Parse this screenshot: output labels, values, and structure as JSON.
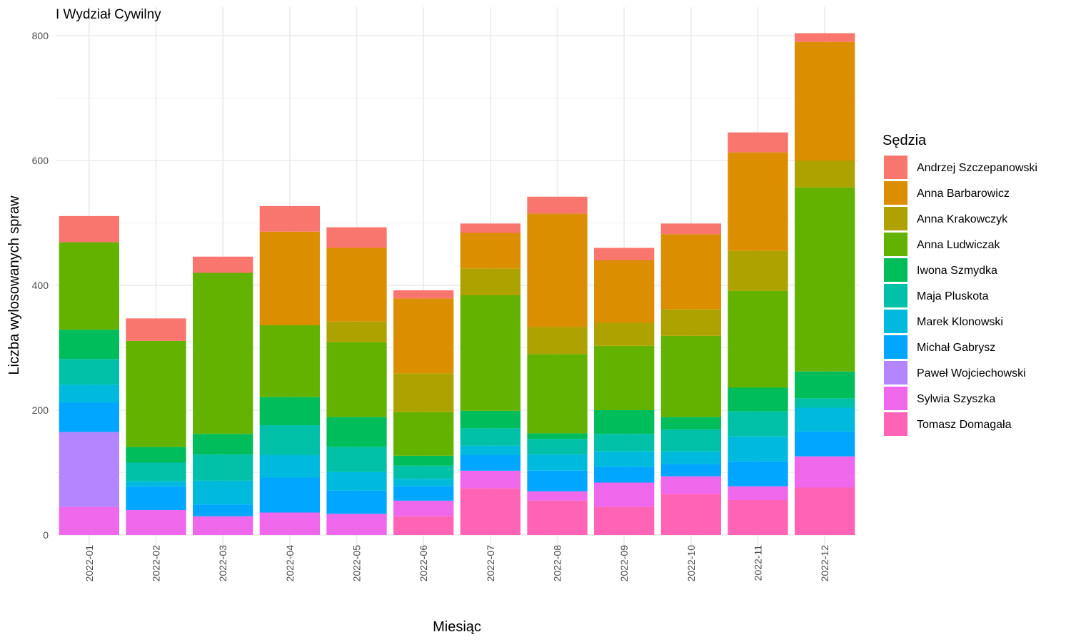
{
  "chart_data": {
    "type": "bar",
    "stacked": true,
    "title": "I Wydział Cywilny",
    "xlabel": "Miesiąc",
    "ylabel": "Liczba wylosowanych spraw",
    "ylim": [
      0,
      830
    ],
    "yticks": [
      0,
      200,
      400,
      600,
      800
    ],
    "grid": true,
    "legend_title": "Sędzia",
    "legend_position": "right",
    "categories": [
      "2022-01",
      "2022-02",
      "2022-03",
      "2022-04",
      "2022-05",
      "2022-06",
      "2022-07",
      "2022-08",
      "2022-09",
      "2022-10",
      "2022-11",
      "2022-12"
    ],
    "series": [
      {
        "name": "Andrzej Szczepanowski",
        "color": "#F8766D",
        "values": [
          42,
          36,
          26,
          41,
          33,
          13,
          15,
          27,
          20,
          17,
          32,
          14
        ]
      },
      {
        "name": "Anna Barbarowicz",
        "color": "#DB8E00",
        "values": [
          0,
          0,
          0,
          150,
          118,
          120,
          57,
          182,
          100,
          120,
          158,
          190
        ]
      },
      {
        "name": "Anna Krakowczyk",
        "color": "#AEA200",
        "values": [
          0,
          0,
          0,
          0,
          33,
          62,
          43,
          43,
          37,
          43,
          64,
          43
        ]
      },
      {
        "name": "Anna Ludwiczak",
        "color": "#64B200",
        "values": [
          140,
          170,
          258,
          115,
          120,
          70,
          185,
          127,
          103,
          130,
          155,
          295
        ]
      },
      {
        "name": "Iwona Szmydka",
        "color": "#00BD5C",
        "values": [
          47,
          25,
          33,
          45,
          48,
          16,
          28,
          9,
          38,
          20,
          38,
          43
        ]
      },
      {
        "name": "Maja Pluskota",
        "color": "#00C1A7",
        "values": [
          41,
          30,
          42,
          48,
          40,
          21,
          28,
          25,
          28,
          35,
          40,
          15
        ]
      },
      {
        "name": "Marek Klonowski",
        "color": "#00BADE",
        "values": [
          29,
          8,
          38,
          36,
          30,
          12,
          15,
          26,
          25,
          20,
          40,
          38
        ]
      },
      {
        "name": "Michał Gabrysz",
        "color": "#00A6FF",
        "values": [
          47,
          38,
          19,
          56,
          37,
          23,
          25,
          33,
          25,
          20,
          40,
          40
        ]
      },
      {
        "name": "Paweł Wojciechowski",
        "color": "#B385FF",
        "values": [
          120,
          0,
          0,
          0,
          0,
          0,
          0,
          0,
          0,
          0,
          0,
          0
        ]
      },
      {
        "name": "Sylwia Szyszka",
        "color": "#EF67EB",
        "values": [
          45,
          40,
          30,
          36,
          34,
          25,
          28,
          15,
          39,
          28,
          22,
          50
        ]
      },
      {
        "name": "Tomasz Domagała",
        "color": "#FF63B6",
        "values": [
          0,
          0,
          0,
          0,
          0,
          30,
          75,
          55,
          45,
          66,
          56,
          76
        ]
      }
    ]
  }
}
